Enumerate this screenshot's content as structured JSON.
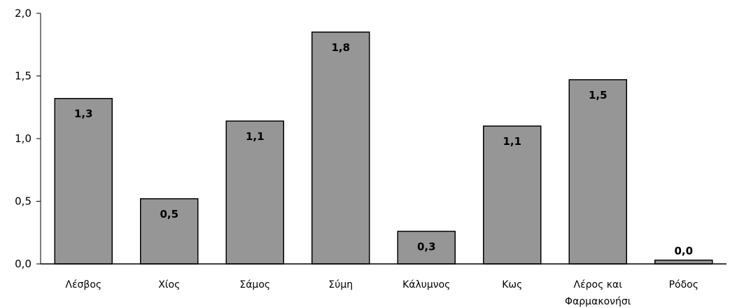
{
  "chart_data": {
    "type": "bar",
    "categories": [
      "Λέσβος",
      "Χίος",
      "Σάμος",
      "Σύμη",
      "Κάλυμνος",
      "Κως",
      "Λέρος και Φαρμακονήσι",
      "Ρόδος"
    ],
    "category_lines": [
      [
        "Λέσβος"
      ],
      [
        "Χίος"
      ],
      [
        "Σάμος"
      ],
      [
        "Σύμη"
      ],
      [
        "Κάλυμνος"
      ],
      [
        "Κως"
      ],
      [
        "Λέρος και",
        "Φαρμακονήσι"
      ],
      [
        "Ρόδος"
      ]
    ],
    "values": [
      1.32,
      0.52,
      1.14,
      1.85,
      0.26,
      1.1,
      1.47,
      0.03
    ],
    "data_labels": [
      "1,3",
      "0,5",
      "1,1",
      "1,8",
      "0,3",
      "1,1",
      "1,5",
      "0,0"
    ],
    "y_ticks": [
      0,
      0.5,
      1.0,
      1.5,
      2.0
    ],
    "y_tick_labels": [
      "0,0",
      "0,5",
      "1,0",
      "1,5",
      "2,0"
    ],
    "ylim": [
      0,
      2.0
    ],
    "grid": false,
    "legend": "none",
    "colors": {
      "bar_fill": "#969696",
      "bar_stroke": "#000000",
      "axis": "#000000"
    }
  }
}
